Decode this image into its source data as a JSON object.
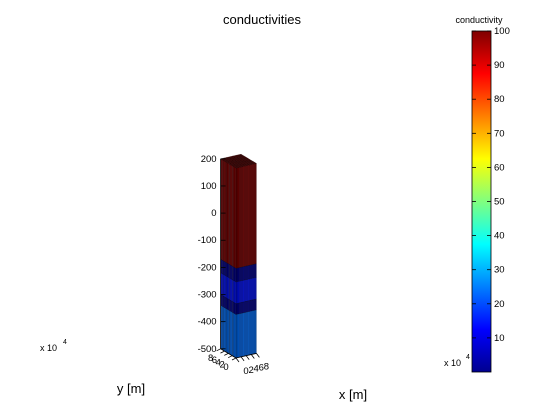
{
  "chart_data": {
    "type": "3d-layered-block",
    "title": "conductivities",
    "xlabel": "x [m]",
    "ylabel": "y [m]",
    "zlabel": "",
    "xlim": [
      0,
      80000
    ],
    "ylim": [
      0,
      80000
    ],
    "zlim": [
      -500,
      200
    ],
    "x_ticks": [
      "0",
      "2",
      "4",
      "6",
      "8"
    ],
    "y_ticks": [
      "0",
      "2",
      "4",
      "6",
      "8"
    ],
    "z_ticks": [
      "200",
      "100",
      "0",
      "-100",
      "-200",
      "-300",
      "-400",
      "-500"
    ],
    "x_multiplier": "x 10",
    "y_multiplier": "x 10",
    "multiplier_exponent": "4",
    "grid": {
      "nx": 20,
      "ny": 20
    },
    "layers": [
      {
        "z_top": 200,
        "z_bottom": -170,
        "conductivity": 100,
        "color": "#800000"
      },
      {
        "z_top": -170,
        "z_bottom": -220,
        "conductivity": 4,
        "color": "#00008f"
      },
      {
        "z_top": -220,
        "z_bottom": -300,
        "conductivity": 12,
        "color": "#0010ff"
      },
      {
        "z_top": -300,
        "z_bottom": -340,
        "conductivity": 4,
        "color": "#00008f"
      },
      {
        "z_top": -340,
        "z_bottom": -500,
        "conductivity": 20,
        "color": "#0070ff"
      }
    ],
    "colorbar": {
      "label": "conductivity",
      "min": 0,
      "max": 100,
      "ticks": [
        "10",
        "20",
        "30",
        "40",
        "50",
        "60",
        "70",
        "80",
        "90",
        "100"
      ],
      "colormap": "jet"
    }
  }
}
